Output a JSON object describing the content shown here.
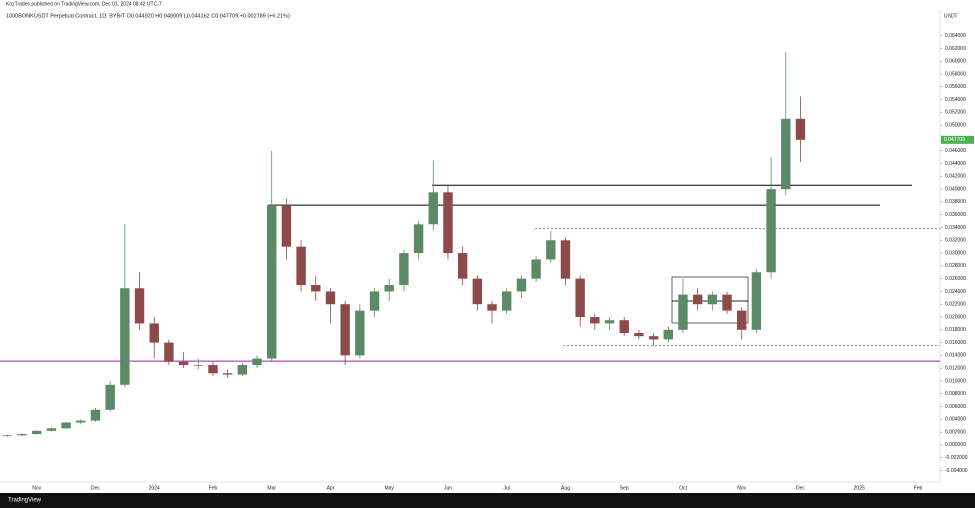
{
  "chart_data": {
    "type": "candlestick",
    "publisher": "KozTrades published on TradingView.com, Dec 01, 2024 08:42 UTC-7",
    "title": "1000BONKUSDT Perpetual Contract, 1D, BYBIT  O0.044920 H0.048009 L0.044162 C0.047709 +0.002789 (+6.21%)",
    "y_axis_label": "USDT",
    "brand": "TradingView",
    "last_price": {
      "value": 0.047709,
      "label": "0.047709",
      "color": "#4caf50"
    },
    "up_color": "#5d8a66",
    "down_color": "#8c4a4a",
    "categories": [
      null,
      null,
      "Nov",
      null,
      null,
      null,
      "Dec",
      null,
      null,
      null,
      "2024",
      null,
      null,
      null,
      "Feb",
      null,
      null,
      null,
      "Mar",
      null,
      null,
      null,
      "Apr",
      null,
      null,
      null,
      "May",
      null,
      null,
      null,
      "Jun",
      null,
      null,
      null,
      "Jul",
      null,
      null,
      null,
      "Aug",
      null,
      null,
      null,
      "Sep",
      null,
      null,
      null,
      "Oct",
      null,
      null,
      null,
      "Nov",
      null,
      null,
      null,
      "Dec",
      null,
      null,
      null,
      "2025",
      null,
      null,
      null,
      "Feb",
      null
    ],
    "open": [
      0.0014,
      0.0015,
      0.0017,
      0.0022,
      0.0026,
      0.0035,
      0.0038,
      0.0055,
      0.0094,
      0.0245,
      0.019,
      0.016,
      0.013,
      0.0125,
      0.0125,
      0.0112,
      0.011,
      0.0125,
      0.0135,
      0.0375,
      0.031,
      0.025,
      0.024,
      0.022,
      0.014,
      0.021,
      0.024,
      0.025,
      0.03,
      0.0345,
      0.0395,
      0.03,
      0.026,
      0.022,
      0.021,
      0.024,
      0.026,
      0.029,
      0.032,
      0.026,
      0.02,
      0.019,
      0.0195,
      0.0175,
      0.017,
      0.0165,
      0.018,
      0.0235,
      0.022,
      0.0235,
      0.021,
      0.018,
      0.027,
      0.04,
      0.051,
      null,
      null,
      null,
      null,
      null,
      null,
      null,
      null,
      null
    ],
    "high": [
      0.0016,
      0.0018,
      0.0023,
      0.0027,
      0.0036,
      0.004,
      0.0058,
      0.01,
      0.0345,
      0.027,
      0.02,
      0.0165,
      0.0145,
      0.0135,
      0.013,
      0.0118,
      0.0128,
      0.014,
      0.046,
      0.0385,
      0.032,
      0.0265,
      0.0245,
      0.0225,
      0.022,
      0.0245,
      0.026,
      0.0305,
      0.035,
      0.0445,
      0.0405,
      0.031,
      0.0265,
      0.0225,
      0.0245,
      0.0265,
      0.0295,
      0.0335,
      0.0325,
      0.0265,
      0.0205,
      0.02,
      0.02,
      0.018,
      0.0175,
      0.0185,
      0.026,
      0.0245,
      0.024,
      0.024,
      0.0215,
      0.0275,
      0.045,
      0.0615,
      0.0545,
      null,
      null,
      null,
      null,
      null,
      null,
      null,
      null,
      null
    ],
    "low": [
      0.0013,
      0.0014,
      0.0016,
      0.0021,
      0.0025,
      0.0033,
      0.0036,
      0.0052,
      0.009,
      0.018,
      0.0135,
      0.0125,
      0.012,
      0.0118,
      0.0108,
      0.0105,
      0.0108,
      0.012,
      0.013,
      0.029,
      0.024,
      0.0225,
      0.019,
      0.0125,
      0.0135,
      0.02,
      0.0225,
      0.024,
      0.029,
      0.0335,
      0.029,
      0.025,
      0.021,
      0.019,
      0.0205,
      0.023,
      0.0255,
      0.0285,
      0.025,
      0.0185,
      0.018,
      0.018,
      0.017,
      0.0165,
      0.0155,
      0.016,
      0.0175,
      0.021,
      0.021,
      0.0205,
      0.0165,
      0.0175,
      0.026,
      0.039,
      0.0442,
      null,
      null,
      null,
      null,
      null,
      null,
      null,
      null,
      null
    ],
    "close": [
      0.0015,
      0.0017,
      0.0022,
      0.0026,
      0.0035,
      0.0038,
      0.0055,
      0.0094,
      0.0245,
      0.019,
      0.016,
      0.013,
      0.0125,
      0.0125,
      0.0112,
      0.011,
      0.0125,
      0.0135,
      0.0375,
      0.031,
      0.025,
      0.024,
      0.022,
      0.014,
      0.021,
      0.024,
      0.025,
      0.03,
      0.0345,
      0.0395,
      0.03,
      0.026,
      0.022,
      0.021,
      0.024,
      0.026,
      0.029,
      0.032,
      0.026,
      0.02,
      0.019,
      0.0195,
      0.0175,
      0.017,
      0.0165,
      0.018,
      0.0235,
      0.022,
      0.0235,
      0.021,
      0.018,
      0.027,
      0.04,
      0.051,
      0.047709,
      null,
      null,
      null,
      null,
      null,
      null,
      null,
      null,
      null
    ],
    "levels": [
      {
        "value": 0.0406,
        "color": "#000000",
        "dashed": false
      },
      {
        "value": 0.0375,
        "color": "#000000",
        "dashed": false
      },
      {
        "value": 0.0338,
        "color": "#555555",
        "dashed": true
      },
      {
        "value": 0.0155,
        "color": "#555555",
        "dashed": true
      },
      {
        "value": 0.0131,
        "color": "#a020a0",
        "dashed": false
      }
    ],
    "ylim": [
      -0.0058,
      0.0677
    ],
    "yticks": [
      {
        "value": -0.004,
        "label": "-0.004000"
      },
      {
        "value": -0.002,
        "label": "-0.002000"
      },
      {
        "value": 0,
        "label": "0.000000"
      },
      {
        "value": 0.002,
        "label": "0.002000"
      },
      {
        "value": 0.004,
        "label": "0.004000"
      },
      {
        "value": 0.006,
        "label": "0.006000"
      },
      {
        "value": 0.008,
        "label": "0.008000"
      },
      {
        "value": 0.01,
        "label": "0.010000"
      },
      {
        "value": 0.012,
        "label": "0.012000"
      },
      {
        "value": 0.014,
        "label": "0.014000"
      },
      {
        "value": 0.016,
        "label": "0.016000"
      },
      {
        "value": 0.018,
        "label": "0.018000"
      },
      {
        "value": 0.02,
        "label": "0.020000"
      },
      {
        "value": 0.022,
        "label": "0.022000"
      },
      {
        "value": 0.024,
        "label": "0.024000"
      },
      {
        "value": 0.026,
        "label": "0.026000"
      },
      {
        "value": 0.028,
        "label": "0.028000"
      },
      {
        "value": 0.03,
        "label": "0.030000"
      },
      {
        "value": 0.032,
        "label": "0.032000"
      },
      {
        "value": 0.034,
        "label": "0.034000"
      },
      {
        "value": 0.036,
        "label": "0.036000"
      },
      {
        "value": 0.038,
        "label": "0.038000"
      },
      {
        "value": 0.04,
        "label": "0.040000"
      },
      {
        "value": 0.042,
        "label": "0.042000"
      },
      {
        "value": 0.044,
        "label": "0.044000"
      },
      {
        "value": 0.046,
        "label": "0.046000"
      },
      {
        "value": 0.05,
        "label": "0.050000"
      },
      {
        "value": 0.052,
        "label": "0.052000"
      },
      {
        "value": 0.054,
        "label": "0.054000"
      },
      {
        "value": 0.056,
        "label": "0.056000"
      },
      {
        "value": 0.058,
        "label": "0.058000"
      },
      {
        "value": 0.06,
        "label": "0.060000"
      },
      {
        "value": 0.062,
        "label": "0.062000"
      },
      {
        "value": 0.064,
        "label": "0.064000"
      }
    ],
    "grid": false
  }
}
